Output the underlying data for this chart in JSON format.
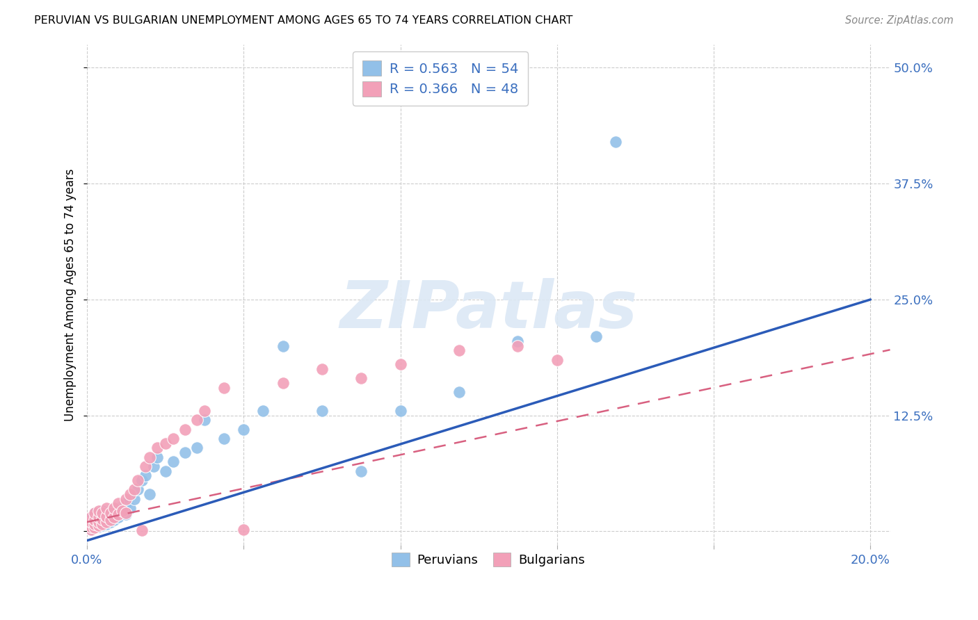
{
  "title": "PERUVIAN VS BULGARIAN UNEMPLOYMENT AMONG AGES 65 TO 74 YEARS CORRELATION CHART",
  "source": "Source: ZipAtlas.com",
  "ylabel": "Unemployment Among Ages 65 to 74 years",
  "xlim": [
    0.0,
    0.205
  ],
  "ylim": [
    -0.015,
    0.525
  ],
  "xtick_positions": [
    0.0,
    0.04,
    0.08,
    0.12,
    0.16,
    0.2
  ],
  "xtick_labels": [
    "0.0%",
    "",
    "",
    "",
    "",
    "20.0%"
  ],
  "ytick_positions": [
    0.0,
    0.125,
    0.25,
    0.375,
    0.5
  ],
  "ytick_labels_right": [
    "",
    "12.5%",
    "25.0%",
    "37.5%",
    "50.0%"
  ],
  "peruvians_R": 0.563,
  "peruvians_N": 54,
  "bulgarians_R": 0.366,
  "bulgarians_N": 48,
  "peruvian_color": "#92C0E8",
  "bulgarian_color": "#F2A0B8",
  "peruvian_line_color": "#2B5BB8",
  "bulgarian_line_color": "#D86080",
  "legend_label_peruvians": "Peruvians",
  "legend_label_bulgarians": "Bulgarians",
  "watermark": "ZIPatlas",
  "peruvian_line_x0": 0.0,
  "peruvian_line_y0": -0.01,
  "peruvian_line_x1": 0.2,
  "peruvian_line_y1": 0.25,
  "bulgarian_line_x0": 0.0,
  "bulgarian_line_y0": 0.01,
  "bulgarian_line_x1": 0.16,
  "bulgarian_line_y1": 0.155,
  "peruvians_x": [
    0.001,
    0.001,
    0.001,
    0.001,
    0.001,
    0.002,
    0.002,
    0.002,
    0.002,
    0.002,
    0.003,
    0.003,
    0.003,
    0.003,
    0.004,
    0.004,
    0.004,
    0.004,
    0.005,
    0.005,
    0.005,
    0.006,
    0.006,
    0.007,
    0.007,
    0.008,
    0.008,
    0.009,
    0.01,
    0.01,
    0.011,
    0.012,
    0.013,
    0.014,
    0.015,
    0.016,
    0.017,
    0.018,
    0.02,
    0.022,
    0.025,
    0.028,
    0.03,
    0.035,
    0.04,
    0.045,
    0.05,
    0.06,
    0.07,
    0.08,
    0.095,
    0.11,
    0.13,
    0.135
  ],
  "peruvians_y": [
    0.002,
    0.005,
    0.007,
    0.01,
    0.015,
    0.004,
    0.007,
    0.01,
    0.013,
    0.02,
    0.005,
    0.008,
    0.012,
    0.018,
    0.006,
    0.01,
    0.015,
    0.022,
    0.008,
    0.012,
    0.018,
    0.01,
    0.015,
    0.012,
    0.018,
    0.015,
    0.025,
    0.02,
    0.018,
    0.03,
    0.025,
    0.035,
    0.045,
    0.055,
    0.06,
    0.04,
    0.07,
    0.08,
    0.065,
    0.075,
    0.085,
    0.09,
    0.12,
    0.1,
    0.11,
    0.13,
    0.2,
    0.13,
    0.065,
    0.13,
    0.15,
    0.205,
    0.21,
    0.42
  ],
  "bulgarians_x": [
    0.001,
    0.001,
    0.001,
    0.001,
    0.002,
    0.002,
    0.002,
    0.002,
    0.003,
    0.003,
    0.003,
    0.003,
    0.004,
    0.004,
    0.004,
    0.005,
    0.005,
    0.005,
    0.006,
    0.006,
    0.007,
    0.007,
    0.008,
    0.008,
    0.009,
    0.01,
    0.01,
    0.011,
    0.012,
    0.013,
    0.014,
    0.015,
    0.016,
    0.018,
    0.02,
    0.022,
    0.025,
    0.028,
    0.03,
    0.035,
    0.04,
    0.05,
    0.06,
    0.07,
    0.08,
    0.095,
    0.11,
    0.12
  ],
  "bulgarians_y": [
    0.002,
    0.005,
    0.01,
    0.015,
    0.004,
    0.008,
    0.012,
    0.02,
    0.006,
    0.01,
    0.015,
    0.022,
    0.008,
    0.013,
    0.02,
    0.01,
    0.016,
    0.025,
    0.012,
    0.02,
    0.015,
    0.025,
    0.018,
    0.03,
    0.022,
    0.02,
    0.035,
    0.04,
    0.045,
    0.055,
    0.001,
    0.07,
    0.08,
    0.09,
    0.095,
    0.1,
    0.11,
    0.12,
    0.13,
    0.155,
    0.002,
    0.16,
    0.175,
    0.165,
    0.18,
    0.195,
    0.2,
    0.185
  ]
}
